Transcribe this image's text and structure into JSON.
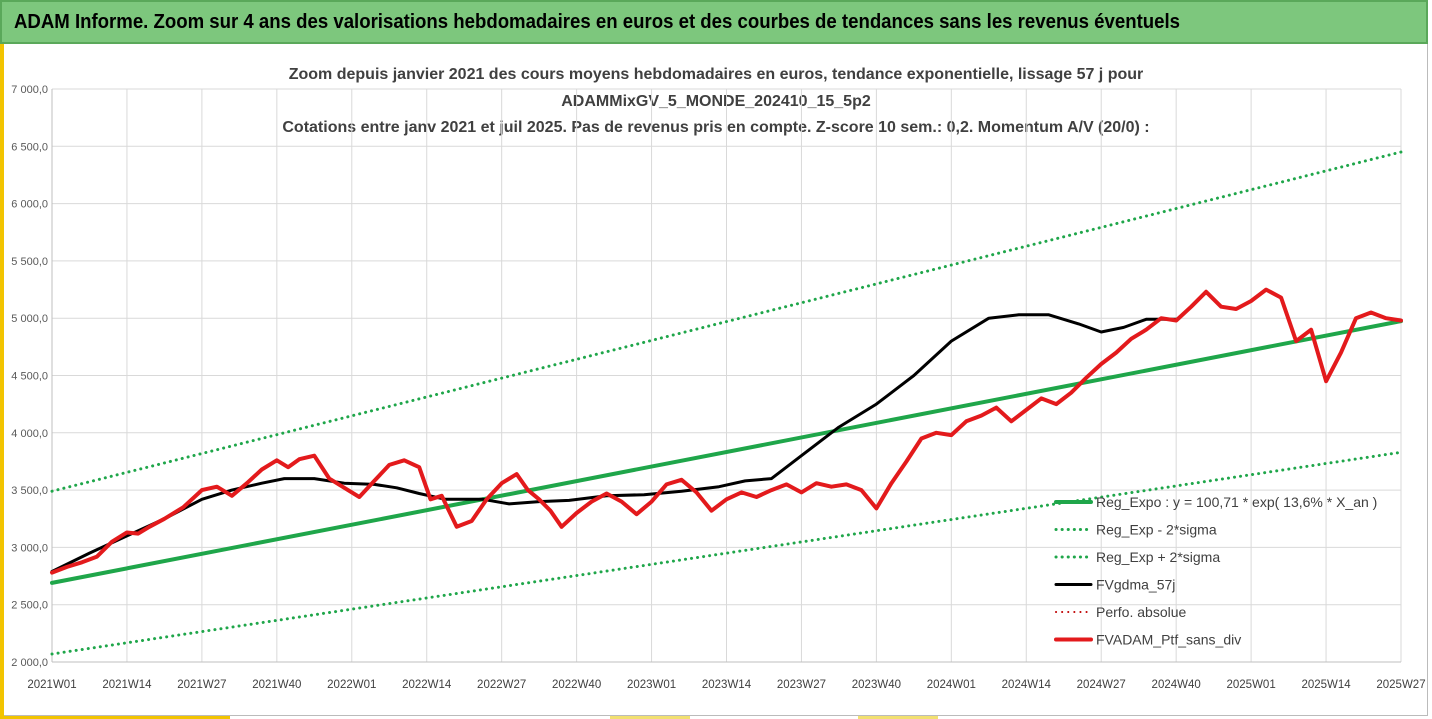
{
  "header": {
    "title": "ADAM Informe. Zoom sur 4 ans des valorisations hebdomadaires en euros et des courbes de tendances sans les revenus éventuels"
  },
  "chart_data": {
    "type": "line",
    "title_lines": [
      "Zoom depuis janvier 2021 des cours moyens hebdomadaires  en euros, tendance exponentielle, lissage 57 j pour",
      "ADAMMixGV_5_MONDE_202410_15_5p2",
      "Cotations entre janv 2021 et juil 2025. Pas de revenus pris en compte. Z-score 10 sem.: 0,2. Momentum A/V (20/0) :"
    ],
    "ylim": [
      2000,
      7000
    ],
    "ytick_labels": [
      "2 000,0",
      "2 500,0",
      "3 000,0",
      "3 500,0",
      "4 000,0",
      "4 500,0",
      "5 000,0",
      "5 500,0",
      "6 000,0",
      "6 500,0",
      "7 000,0"
    ],
    "ytick_values": [
      2000,
      2500,
      3000,
      3500,
      4000,
      4500,
      5000,
      5500,
      6000,
      6500,
      7000
    ],
    "x_weeks_total": 235,
    "xtick_labels": [
      "2021W01",
      "2021W14",
      "2021W27",
      "2021W40",
      "2022W01",
      "2022W14",
      "2022W27",
      "2022W40",
      "2023W01",
      "2023W14",
      "2023W27",
      "2023W40",
      "2024W01",
      "2024W14",
      "2024W27",
      "2024W40",
      "2025W01",
      "2025W14",
      "2025W27"
    ],
    "grid": true,
    "legend_position": "bottom-right",
    "series": [
      {
        "name": "Reg_Expo : y = 100,71 * exp( 13,6% *  X_an )",
        "color": "#1fa64a",
        "style": "solid",
        "width": 4,
        "points": [
          [
            0,
            2690
          ],
          [
            234,
            4975
          ]
        ]
      },
      {
        "name": "Reg_Exp - 2*sigma",
        "color": "#1fa64a",
        "style": "dotted",
        "width": 3,
        "points": [
          [
            0,
            2070
          ],
          [
            234,
            3830
          ]
        ]
      },
      {
        "name": "Reg_Exp + 2*sigma",
        "color": "#1fa64a",
        "style": "dotted",
        "width": 3,
        "points": [
          [
            0,
            3490
          ],
          [
            234,
            6450
          ]
        ]
      },
      {
        "name": "FVgdma_57j",
        "color": "#000000",
        "style": "solid",
        "width": 3,
        "points": [
          [
            0,
            2790
          ],
          [
            10,
            2950
          ],
          [
            20,
            3100
          ],
          [
            30,
            3250
          ],
          [
            40,
            3420
          ],
          [
            48,
            3500
          ],
          [
            56,
            3560
          ],
          [
            62,
            3600
          ],
          [
            70,
            3600
          ],
          [
            78,
            3560
          ],
          [
            86,
            3550
          ],
          [
            92,
            3520
          ],
          [
            98,
            3470
          ],
          [
            105,
            3420
          ],
          [
            115,
            3420
          ],
          [
            122,
            3380
          ],
          [
            130,
            3400
          ],
          [
            138,
            3410
          ],
          [
            148,
            3450
          ],
          [
            158,
            3460
          ],
          [
            168,
            3490
          ],
          [
            178,
            3530
          ],
          [
            185,
            3580
          ],
          [
            192,
            3600
          ],
          [
            200,
            3800
          ],
          [
            210,
            4050
          ],
          [
            220,
            4250
          ],
          [
            230,
            4500
          ],
          [
            240,
            4800
          ],
          [
            250,
            5000
          ],
          [
            258,
            5030
          ],
          [
            266,
            5030
          ],
          [
            274,
            4950
          ],
          [
            280,
            4880
          ],
          [
            286,
            4920
          ],
          [
            292,
            4990
          ],
          [
            300,
            4990
          ]
        ]
      },
      {
        "name": "Perfo. absolue",
        "color": "#c00000",
        "style": "dotted",
        "width": 2,
        "points": []
      },
      {
        "name": "FVADAM_Ptf_sans_div",
        "color": "#e31a1c",
        "style": "solid",
        "width": 4,
        "points": [
          [
            0,
            2780
          ],
          [
            4,
            2830
          ],
          [
            8,
            2870
          ],
          [
            12,
            2920
          ],
          [
            16,
            3050
          ],
          [
            20,
            3130
          ],
          [
            23,
            3120
          ],
          [
            26,
            3180
          ],
          [
            30,
            3250
          ],
          [
            35,
            3350
          ],
          [
            40,
            3500
          ],
          [
            44,
            3530
          ],
          [
            48,
            3450
          ],
          [
            52,
            3560
          ],
          [
            56,
            3680
          ],
          [
            60,
            3760
          ],
          [
            63,
            3700
          ],
          [
            66,
            3770
          ],
          [
            70,
            3800
          ],
          [
            74,
            3600
          ],
          [
            78,
            3520
          ],
          [
            82,
            3440
          ],
          [
            86,
            3580
          ],
          [
            90,
            3720
          ],
          [
            94,
            3760
          ],
          [
            98,
            3700
          ],
          [
            101,
            3420
          ],
          [
            104,
            3450
          ],
          [
            108,
            3180
          ],
          [
            112,
            3230
          ],
          [
            116,
            3420
          ],
          [
            120,
            3560
          ],
          [
            124,
            3640
          ],
          [
            127,
            3500
          ],
          [
            130,
            3420
          ],
          [
            133,
            3320
          ],
          [
            136,
            3180
          ],
          [
            140,
            3300
          ],
          [
            144,
            3400
          ],
          [
            148,
            3470
          ],
          [
            152,
            3400
          ],
          [
            156,
            3290
          ],
          [
            160,
            3400
          ],
          [
            164,
            3550
          ],
          [
            168,
            3590
          ],
          [
            172,
            3480
          ],
          [
            176,
            3320
          ],
          [
            180,
            3420
          ],
          [
            184,
            3480
          ],
          [
            188,
            3440
          ],
          [
            192,
            3500
          ],
          [
            196,
            3550
          ],
          [
            200,
            3480
          ],
          [
            204,
            3560
          ],
          [
            208,
            3530
          ],
          [
            212,
            3550
          ],
          [
            216,
            3500
          ],
          [
            220,
            3340
          ],
          [
            224,
            3560
          ],
          [
            228,
            3750
          ],
          [
            232,
            3950
          ],
          [
            236,
            4000
          ],
          [
            240,
            3980
          ],
          [
            244,
            4100
          ],
          [
            248,
            4150
          ],
          [
            252,
            4220
          ],
          [
            256,
            4100
          ],
          [
            260,
            4200
          ],
          [
            264,
            4300
          ],
          [
            268,
            4250
          ],
          [
            272,
            4350
          ],
          [
            276,
            4480
          ],
          [
            280,
            4600
          ],
          [
            284,
            4700
          ],
          [
            288,
            4820
          ],
          [
            292,
            4900
          ],
          [
            296,
            5000
          ],
          [
            300,
            4980
          ],
          [
            304,
            5100
          ],
          [
            308,
            5230
          ],
          [
            312,
            5100
          ],
          [
            316,
            5080
          ],
          [
            320,
            5150
          ],
          [
            324,
            5250
          ],
          [
            328,
            5180
          ],
          [
            332,
            4800
          ],
          [
            336,
            4900
          ],
          [
            340,
            4450
          ],
          [
            344,
            4700
          ],
          [
            348,
            5000
          ],
          [
            352,
            5050
          ],
          [
            356,
            5000
          ],
          [
            360,
            4980
          ]
        ]
      }
    ]
  }
}
